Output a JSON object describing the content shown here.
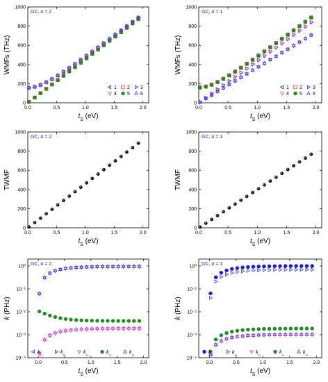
{
  "charts": [
    {
      "id": "a",
      "type": "scatter",
      "annotation": "GC, α = 2",
      "xlabel": "t",
      "xlabel_sub": "S",
      "xlabel_unit": " (eV)",
      "ylabel": "WMFs (THz)",
      "xlim": [
        0,
        2.1
      ],
      "ylim": [
        0,
        1000
      ],
      "xticks": [
        "0.0",
        "0.5",
        "1.0",
        "1.5",
        "2.0"
      ],
      "yticks": [
        "0",
        "200",
        "400",
        "600",
        "800",
        "1000"
      ],
      "legend": [
        {
          "label": "1",
          "marker": "tri-left",
          "color": "#333333"
        },
        {
          "label": "2",
          "marker": "square",
          "color": "#e84040"
        },
        {
          "label": "3",
          "marker": "tri-right",
          "color": "#3a3ad8"
        },
        {
          "label": "4",
          "marker": "tri-down",
          "color": "#d040d0"
        },
        {
          "label": "5",
          "marker": "circle",
          "color": "#1e8c1e"
        },
        {
          "label": "6",
          "marker": "tri-up",
          "color": "#3a3ad8"
        }
      ]
    },
    {
      "id": "b",
      "type": "scatter",
      "annotation": "GC, α = 1",
      "xlabel": "t",
      "xlabel_sub": "S",
      "xlabel_unit": " (eV)",
      "ylabel": "WMFs (THz)",
      "xlim": [
        0,
        2.1
      ],
      "ylim": [
        0,
        1000
      ],
      "xticks": [
        "0.0",
        "0.5",
        "1.0",
        "1.5",
        "2.0"
      ],
      "yticks": [
        "0",
        "200",
        "400",
        "600",
        "800",
        "1000"
      ],
      "legend": [
        {
          "label": "1",
          "marker": "tri-left",
          "color": "#333333"
        },
        {
          "label": "2",
          "marker": "square",
          "color": "#e84040"
        },
        {
          "label": "3",
          "marker": "tri-right",
          "color": "#3a3ad8"
        },
        {
          "label": "4",
          "marker": "tri-down",
          "color": "#d040d0"
        },
        {
          "label": "5",
          "marker": "circle",
          "color": "#1e8c1e"
        },
        {
          "label": "6",
          "marker": "tri-up",
          "color": "#3a3ad8"
        }
      ]
    },
    {
      "id": "c",
      "type": "scatter",
      "annotation": "GC, α = 2",
      "xlabel": "t",
      "xlabel_sub": "S",
      "xlabel_unit": " (eV)",
      "ylabel": "TWMF",
      "xlim": [
        0,
        2.1
      ],
      "ylim": [
        0,
        1000
      ],
      "xticks": [
        "0.0",
        "0.5",
        "1.0",
        "1.5",
        "2.0"
      ],
      "yticks": [
        "0",
        "200",
        "400",
        "600",
        "800",
        "1000"
      ]
    },
    {
      "id": "d",
      "type": "scatter",
      "annotation": "GC, α = 1",
      "xlabel": "t",
      "xlabel_sub": "S",
      "xlabel_unit": " (eV)",
      "ylabel": "TWMF",
      "xlim": [
        0,
        2.1
      ],
      "ylim": [
        0,
        1000
      ],
      "xticks": [
        "0.0",
        "0.5",
        "1.0",
        "1.5",
        "2.0"
      ],
      "yticks": [
        "0",
        "200",
        "400",
        "600",
        "800",
        "1000"
      ]
    },
    {
      "id": "e",
      "type": "scatter",
      "annotation": "GC, α = 2",
      "xlabel": "t",
      "xlabel_sub": "S",
      "xlabel_unit": " (eV)",
      "ylabel": "k (PHz)",
      "yscale": "log",
      "xlim": [
        -0.2,
        2.1
      ],
      "ylim": [
        0.0001,
        2
      ],
      "xticks": [
        "0.0",
        "0.5",
        "1.0",
        "1.5",
        "2.0"
      ],
      "yticks": [
        "10⁻⁴",
        "10⁻³",
        "10⁻²",
        "10⁻¹",
        "10⁰"
      ],
      "legend": [
        {
          "label": "k₂₁",
          "marker": "tri-left",
          "color": "#3a3ad8"
        },
        {
          "label": "k₂₃",
          "marker": "tri-right",
          "color": "#3a3ad8"
        },
        {
          "label": "k₂₄",
          "marker": "tri-down",
          "color": "#d040d0"
        },
        {
          "label": "k₂₅",
          "marker": "circle",
          "color": "#1e8c1e"
        },
        {
          "label": "k₂₆",
          "marker": "tri-up",
          "color": "#3a3ad8"
        }
      ]
    },
    {
      "id": "f",
      "type": "scatter",
      "annotation": "GC, α = 1",
      "xlabel": "t",
      "xlabel_sub": "S",
      "xlabel_unit": " (eV)",
      "ylabel": "k (PHz)",
      "yscale": "log",
      "xlim": [
        -0.2,
        2.1
      ],
      "ylim": [
        0.0001,
        2
      ],
      "xticks": [
        "0.0",
        "0.5",
        "1.0",
        "1.5",
        "2.0"
      ],
      "yticks": [
        "10⁻⁴",
        "10⁻³",
        "10⁻²",
        "10⁻¹",
        "10⁰"
      ],
      "legend": [
        {
          "label": "k₁₂",
          "marker": "circle",
          "color": "#1a1ae0"
        },
        {
          "label": "k₁₃",
          "marker": "tri-right",
          "color": "#3a3ad8"
        },
        {
          "label": "k₁₄",
          "marker": "tri-down",
          "color": "#d040d0"
        },
        {
          "label": "k₁₅",
          "marker": "circle",
          "color": "#1e8c1e"
        },
        {
          "label": "k₁₆",
          "marker": "tri-up",
          "color": "#3a3ad8"
        }
      ]
    }
  ],
  "chart_data": [
    {
      "type": "scatter",
      "panel": "a",
      "x_range": [
        0.02,
        2.0
      ],
      "series": [
        {
          "label": "1",
          "values_start": 160,
          "values_end": 920
        },
        {
          "label": "2",
          "values_start": 5,
          "values_end": 915
        },
        {
          "label": "3",
          "values_start": 160,
          "values_end": 925
        },
        {
          "label": "4",
          "values_start": 165,
          "values_end": 920
        },
        {
          "label": "5",
          "values_start": 5,
          "values_end": 910
        },
        {
          "label": "6",
          "values_start": 160,
          "values_end": 925
        }
      ]
    },
    {
      "type": "scatter",
      "panel": "b",
      "x_range": [
        0.02,
        2.0
      ],
      "series": [
        {
          "label": "1",
          "values_start": 160,
          "values_end": 920
        },
        {
          "label": "2",
          "values_start": 155,
          "values_end": 925
        },
        {
          "label": "3",
          "values_start": 0,
          "values_end": 880
        },
        {
          "label": "4",
          "values_start": 0,
          "values_end": 870
        },
        {
          "label": "5",
          "values_start": 158,
          "values_end": 915
        },
        {
          "label": "6",
          "values_start": 0,
          "values_end": 735
        }
      ]
    },
    {
      "type": "scatter",
      "panel": "c",
      "x_range": [
        0.02,
        2.0
      ],
      "values_start": 0,
      "values_end": 920
    },
    {
      "type": "scatter",
      "panel": "d",
      "x_range": [
        0.02,
        2.0
      ],
      "values_start": 0,
      "values_end": 800
    },
    {
      "type": "scatter",
      "panel": "e",
      "yscale": "log",
      "series": [
        {
          "label": "k₂₁ / k₂₃ / k₂₆",
          "start": 0.004,
          "end": 1.0
        },
        {
          "label": "k₂₄",
          "start": 0.0001,
          "end": 0.0018
        },
        {
          "label": "k₂₅",
          "start": 0.01,
          "end": 0.004
        }
      ]
    },
    {
      "type": "scatter",
      "panel": "f",
      "yscale": "log",
      "series": [
        {
          "label": "k₁₂",
          "start": 0.0035,
          "end": 1.0
        },
        {
          "label": "k₁₃ / k₁₆",
          "start": 0.0001,
          "end": 0.7
        },
        {
          "label": "k₁₄",
          "start": 0.0001,
          "end": 0.0009
        },
        {
          "label": "k₁₅",
          "start": 0.0001,
          "end": 0.0018
        }
      ]
    }
  ]
}
